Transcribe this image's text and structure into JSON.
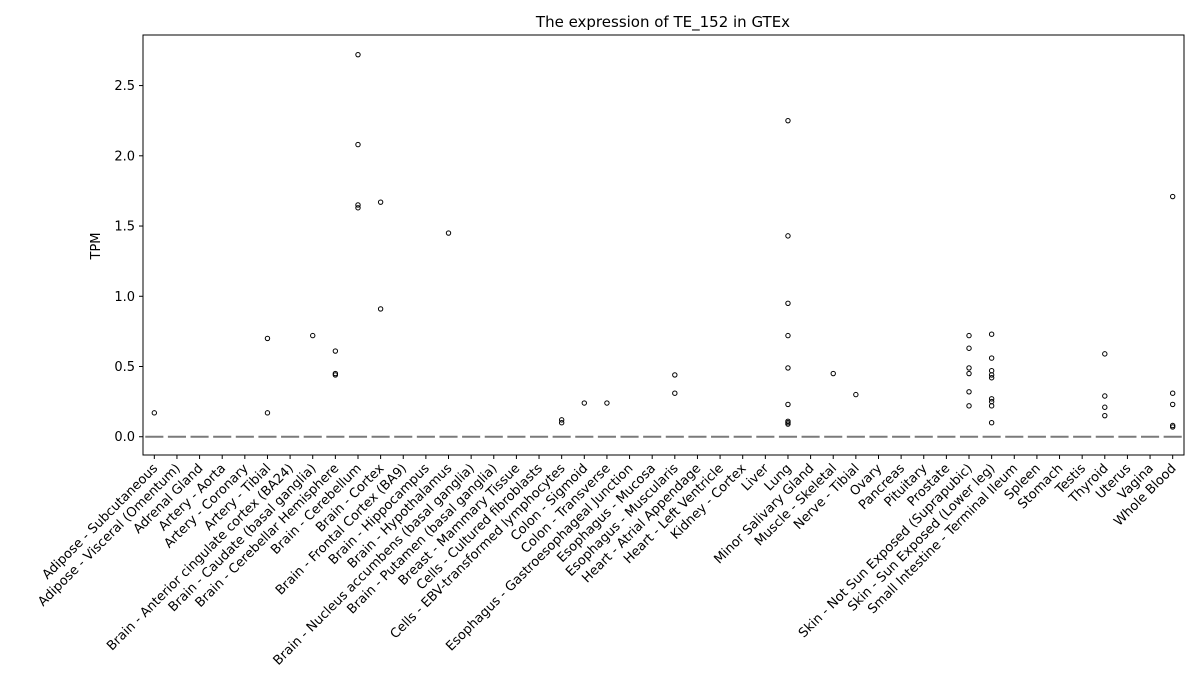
{
  "chart_data": {
    "type": "boxplot",
    "title": "The expression of TE_152 in GTEx",
    "xlabel": "",
    "ylabel": "TPM",
    "ylim": [
      -0.13,
      2.86
    ],
    "yticks": [
      "0.0",
      "0.5",
      "1.0",
      "1.5",
      "2.0",
      "2.5"
    ],
    "grid": false,
    "colors": {
      "median": "#7a7a7a",
      "outlier": "#000000",
      "axis": "#000000"
    },
    "categories": [
      "Adipose - Subcutaneous",
      "Adipose - Visceral (Omentum)",
      "Adrenal Gland",
      "Artery - Aorta",
      "Artery - Coronary",
      "Artery - Tibial",
      "Brain - Anterior cingulate cortex (BA24)",
      "Brain - Caudate (basal ganglia)",
      "Brain - Cerebellar Hemisphere",
      "Brain - Cerebellum",
      "Brain - Cortex",
      "Brain - Frontal Cortex (BA9)",
      "Brain - Hippocampus",
      "Brain - Hypothalamus",
      "Brain - Nucleus accumbens (basal ganglia)",
      "Brain - Putamen (basal ganglia)",
      "Breast - Mammary Tissue",
      "Cells - Cultured fibroblasts",
      "Cells - EBV-transformed lymphocytes",
      "Colon - Sigmoid",
      "Colon - Transverse",
      "Esophagus - Gastroesophageal Junction",
      "Esophagus - Mucosa",
      "Esophagus - Muscularis",
      "Heart - Atrial Appendage",
      "Heart - Left Ventricle",
      "Kidney - Cortex",
      "Liver",
      "Lung",
      "Minor Salivary Gland",
      "Muscle - Skeletal",
      "Nerve - Tibial",
      "Ovary",
      "Pancreas",
      "Pituitary",
      "Prostate",
      "Skin - Not Sun Exposed (Suprapubic)",
      "Skin - Sun Exposed (Lower leg)",
      "Small Intestine - Terminal Ileum",
      "Spleen",
      "Stomach",
      "Testis",
      "Thyroid",
      "Uterus",
      "Vagina",
      "Whole Blood"
    ],
    "medians": [
      0,
      0,
      0,
      0,
      0,
      0,
      0,
      0,
      0,
      0,
      0,
      0,
      0,
      0,
      0,
      0,
      0,
      0,
      0,
      0,
      0,
      0,
      0,
      0,
      0,
      0,
      0,
      0,
      0,
      0,
      0,
      0,
      0,
      0,
      0,
      0,
      0,
      0,
      0,
      0,
      0,
      0,
      0,
      0,
      0,
      0
    ],
    "outliers": [
      [
        0.17
      ],
      [],
      [],
      [],
      [],
      [
        0.7,
        0.17
      ],
      [],
      [
        0.72
      ],
      [
        0.61,
        0.45,
        0.44
      ],
      [
        2.72,
        2.08,
        1.65,
        1.63
      ],
      [
        1.67,
        0.91
      ],
      [],
      [],
      [
        1.45
      ],
      [],
      [],
      [],
      [],
      [
        0.12,
        0.1
      ],
      [
        0.24
      ],
      [
        0.24
      ],
      [],
      [],
      [
        0.44,
        0.31
      ],
      [],
      [],
      [],
      [],
      [
        2.25,
        1.43,
        0.95,
        0.72,
        0.49,
        0.23,
        0.11,
        0.1,
        0.09
      ],
      [],
      [
        0.45
      ],
      [
        0.3
      ],
      [],
      [],
      [],
      [],
      [
        0.72,
        0.63,
        0.49,
        0.45,
        0.32,
        0.22
      ],
      [
        0.73,
        0.56,
        0.47,
        0.44,
        0.42,
        0.27,
        0.25,
        0.22,
        0.1
      ],
      [],
      [],
      [],
      [],
      [
        0.59,
        0.29,
        0.21,
        0.15
      ],
      [],
      [],
      [
        1.71,
        0.31,
        0.23,
        0.08,
        0.07
      ]
    ]
  }
}
